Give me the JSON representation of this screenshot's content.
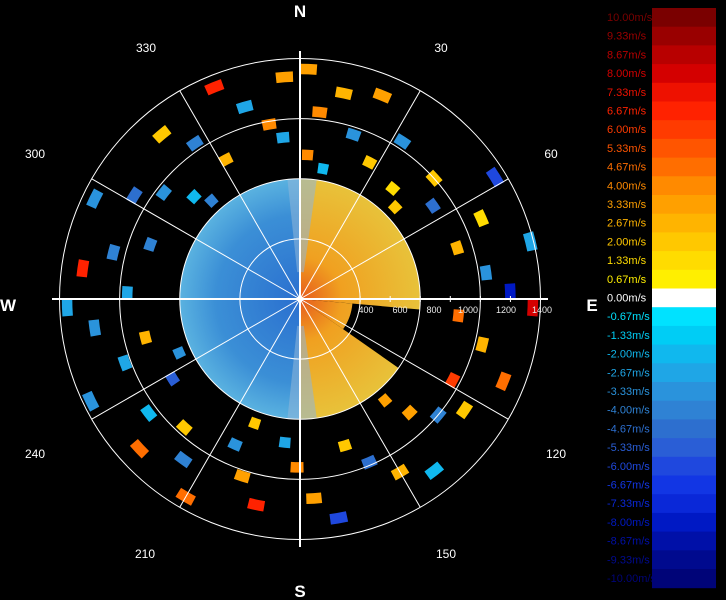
{
  "chart_data": {
    "type": "heatmap",
    "title": "",
    "projection": "polar",
    "orientation": "north-up, clockwise",
    "cardinal_labels": [
      "N",
      "E",
      "S",
      "W"
    ],
    "azimuth_tick_labels": [
      "30",
      "60",
      "120",
      "150",
      "210",
      "240",
      "300",
      "330"
    ],
    "range_tick_labels": [
      "400",
      "600",
      "800",
      "1000",
      "1200",
      "1400"
    ],
    "range_rings": [
      400,
      800,
      1200,
      1600
    ],
    "range_max": 1650,
    "colorbar": {
      "labels": [
        "10.00m/s",
        "9.33m/s",
        "8.67m/s",
        "8.00m/s",
        "7.33m/s",
        "6.67m/s",
        "6.00m/s",
        "5.33m/s",
        "4.67m/s",
        "4.00m/s",
        "3.33m/s",
        "2.67m/s",
        "2.00m/s",
        "1.33m/s",
        "0.67m/s",
        "0.00m/s",
        "-0.67m/s",
        "-1.33m/s",
        "-2.00m/s",
        "-2.67m/s",
        "-3.33m/s",
        "-4.00m/s",
        "-4.67m/s",
        "-5.33m/s",
        "-6.00m/s",
        "-6.67m/s",
        "-7.33m/s",
        "-8.00m/s",
        "-8.67m/s",
        "-9.33m/s",
        "-10.00m/s"
      ],
      "values": [
        10,
        9.33,
        8.67,
        8,
        7.33,
        6.67,
        6,
        5.33,
        4.67,
        4,
        3.33,
        2.67,
        2,
        1.33,
        0.67,
        0,
        -0.67,
        -1.33,
        -2,
        -2.67,
        -3.33,
        -4,
        -4.67,
        -5.33,
        -6,
        -6.67,
        -7.33,
        -8,
        -8.67,
        -9.33,
        -10
      ]
    },
    "inner_echo": {
      "range_max": 800,
      "approaching_sector_deg": [
        180,
        360
      ],
      "receding_sector_deg": [
        0,
        180
      ],
      "receding_notch_deg": [
        95,
        125
      ],
      "approaching_velocity": -3.0,
      "receding_velocity": 3.3
    },
    "sparse_echoes": [
      {
        "az": 2,
        "r": 1530,
        "v": 3.3
      },
      {
        "az": 6,
        "r": 1250,
        "v": 4.0
      },
      {
        "az": 354,
        "r": 1080,
        "v": -2.7
      },
      {
        "az": 3,
        "r": 960,
        "v": 4.0
      },
      {
        "az": 12,
        "r": 1400,
        "v": 2.7
      },
      {
        "az": 18,
        "r": 1150,
        "v": -3.3
      },
      {
        "az": 22,
        "r": 1460,
        "v": 3.3
      },
      {
        "az": 27,
        "r": 1020,
        "v": 2.0
      },
      {
        "az": 33,
        "r": 1250,
        "v": -3.3
      },
      {
        "az": 40,
        "r": 960,
        "v": 1.3
      },
      {
        "az": 48,
        "r": 1200,
        "v": 2.0
      },
      {
        "az": 55,
        "r": 1080,
        "v": -4.7
      },
      {
        "az": 58,
        "r": 1530,
        "v": -6.0
      },
      {
        "az": 66,
        "r": 1320,
        "v": 1.3
      },
      {
        "az": 72,
        "r": 1100,
        "v": 2.7
      },
      {
        "az": 76,
        "r": 1580,
        "v": -2.7
      },
      {
        "az": 82,
        "r": 1250,
        "v": -3.3
      },
      {
        "az": 88,
        "r": 1400,
        "v": -8.0
      },
      {
        "az": 92,
        "r": 1550,
        "v": 8.0
      },
      {
        "az": 96,
        "r": 1060,
        "v": 4.7
      },
      {
        "az": 104,
        "r": 1250,
        "v": 2.7
      },
      {
        "az": 112,
        "r": 1460,
        "v": 4.7
      },
      {
        "az": 118,
        "r": 1150,
        "v": 6.0
      },
      {
        "az": 124,
        "r": 1320,
        "v": 2.0
      },
      {
        "az": 130,
        "r": 1200,
        "v": -4.0
      },
      {
        "az": 136,
        "r": 1050,
        "v": 3.3
      },
      {
        "az": 142,
        "r": 1450,
        "v": -2.0
      },
      {
        "az": 150,
        "r": 1330,
        "v": 2.7
      },
      {
        "az": 157,
        "r": 1180,
        "v": -4.7
      },
      {
        "az": 163,
        "r": 1020,
        "v": 2.0
      },
      {
        "az": 170,
        "r": 1480,
        "v": -6.0
      },
      {
        "az": 176,
        "r": 1330,
        "v": 3.3
      },
      {
        "az": 181,
        "r": 1120,
        "v": 4.0
      },
      {
        "az": 186,
        "r": 960,
        "v": -2.7
      },
      {
        "az": 192,
        "r": 1400,
        "v": 6.7
      },
      {
        "az": 198,
        "r": 1240,
        "v": 3.3
      },
      {
        "az": 204,
        "r": 1060,
        "v": -3.3
      },
      {
        "az": 210,
        "r": 1520,
        "v": 4.7
      },
      {
        "az": 216,
        "r": 1320,
        "v": -4.0
      },
      {
        "az": 222,
        "r": 1150,
        "v": 2.0
      },
      {
        "az": 227,
        "r": 1460,
        "v": 4.7
      },
      {
        "az": 233,
        "r": 1260,
        "v": -2.0
      },
      {
        "az": 238,
        "r": 1000,
        "v": -5.3
      },
      {
        "az": 244,
        "r": 1550,
        "v": -3.3
      },
      {
        "az": 250,
        "r": 1240,
        "v": -2.7
      },
      {
        "az": 256,
        "r": 1060,
        "v": 2.7
      },
      {
        "az": 262,
        "r": 1380,
        "v": -3.3
      },
      {
        "az": 268,
        "r": 1550,
        "v": -2.7
      },
      {
        "az": 272,
        "r": 1150,
        "v": -2.7
      },
      {
        "az": 278,
        "r": 1460,
        "v": 6.7
      },
      {
        "az": 284,
        "r": 1280,
        "v": -4.0
      },
      {
        "az": 290,
        "r": 1060,
        "v": -4.0
      },
      {
        "az": 296,
        "r": 1520,
        "v": -3.3
      },
      {
        "az": 302,
        "r": 1300,
        "v": -4.7
      },
      {
        "az": 308,
        "r": 1150,
        "v": -3.3
      },
      {
        "az": 314,
        "r": 980,
        "v": -2.0
      },
      {
        "az": 320,
        "r": 1430,
        "v": 2.0
      },
      {
        "az": 326,
        "r": 1250,
        "v": -4.0
      },
      {
        "az": 332,
        "r": 1050,
        "v": 2.7
      },
      {
        "az": 338,
        "r": 1520,
        "v": 6.7
      },
      {
        "az": 344,
        "r": 1330,
        "v": -2.7
      },
      {
        "az": 350,
        "r": 1180,
        "v": 4.0
      },
      {
        "az": 356,
        "r": 1480,
        "v": 3.3
      },
      {
        "az": 10,
        "r": 880,
        "v": -2.0
      },
      {
        "az": 46,
        "r": 880,
        "v": 2.0
      },
      {
        "az": 140,
        "r": 880,
        "v": 3.3
      },
      {
        "az": 200,
        "r": 880,
        "v": 2.0
      },
      {
        "az": 246,
        "r": 880,
        "v": -3.3
      },
      {
        "az": 318,
        "r": 880,
        "v": -4.0
      }
    ]
  }
}
